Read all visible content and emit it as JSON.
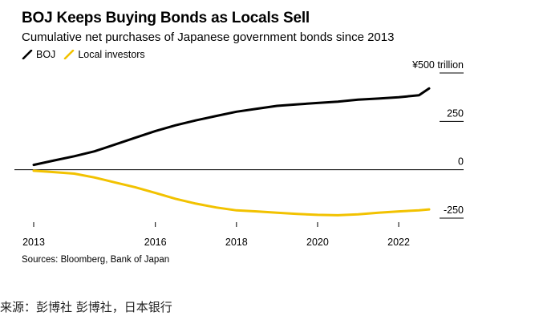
{
  "chart_data": {
    "type": "line",
    "title": "BOJ Keeps Buying Bonds as Locals Sell",
    "subtitle": "Cumulative net purchases of Japanese government bonds since 2013",
    "unit_label": "¥500 trillion",
    "x_ticks": [
      "2013",
      "2016",
      "2018",
      "2020",
      "2022"
    ],
    "y_ticks": [
      {
        "value": 500,
        "label": "¥500 trillion"
      },
      {
        "value": 250,
        "label": "250"
      },
      {
        "value": 0,
        "label": "0"
      },
      {
        "value": -250,
        "label": "-250"
      }
    ],
    "xlim": [
      2013,
      2022.75
    ],
    "ylim": [
      -250,
      500
    ],
    "grid": false,
    "legend_position": "top-left",
    "series": [
      {
        "name": "BOJ",
        "color": "#000000",
        "x": [
          2013,
          2013.5,
          2014,
          2014.5,
          2015,
          2015.5,
          2016,
          2016.5,
          2017,
          2017.5,
          2018,
          2018.5,
          2019,
          2019.5,
          2020,
          2020.5,
          2021,
          2021.5,
          2022,
          2022.5,
          2022.75
        ],
        "y": [
          25,
          48,
          70,
          95,
          130,
          165,
          200,
          230,
          255,
          278,
          300,
          315,
          330,
          338,
          345,
          352,
          362,
          368,
          375,
          385,
          420
        ]
      },
      {
        "name": "Local investors",
        "color": "#f2c200",
        "x": [
          2013,
          2013.5,
          2014,
          2014.5,
          2015,
          2015.5,
          2016,
          2016.5,
          2017,
          2017.5,
          2018,
          2018.5,
          2019,
          2019.5,
          2020,
          2020.5,
          2021,
          2021.5,
          2022,
          2022.5,
          2022.75
        ],
        "y": [
          -5,
          -12,
          -20,
          -40,
          -65,
          -90,
          -120,
          -150,
          -175,
          -195,
          -210,
          -215,
          -222,
          -228,
          -233,
          -235,
          -230,
          -222,
          -215,
          -210,
          -205
        ]
      }
    ]
  },
  "source": "Sources: Bloomberg, Bank of Japan",
  "caption": "来源：彭博社 彭博社，日本银行"
}
